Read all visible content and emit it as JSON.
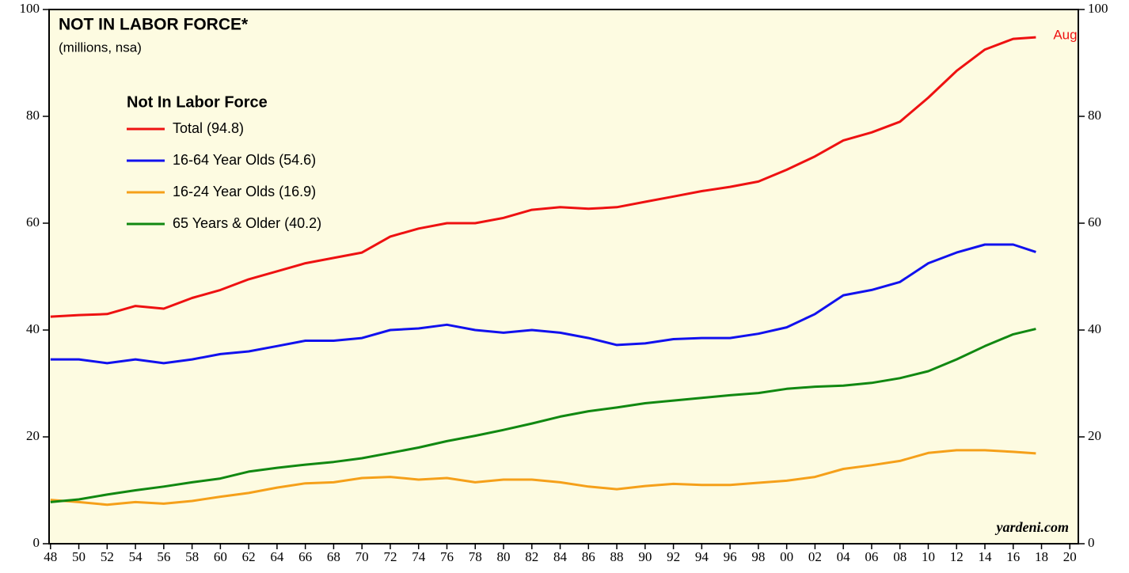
{
  "chart_data": {
    "type": "line",
    "title": "NOT IN LABOR FORCE*",
    "subtitle": "(millions, nsa)",
    "legend_title": "Not In Labor Force",
    "annotation": "Aug",
    "source": "yardeni.com",
    "x": [
      1948,
      1950,
      1952,
      1954,
      1956,
      1958,
      1960,
      1962,
      1964,
      1966,
      1968,
      1970,
      1972,
      1974,
      1976,
      1978,
      1980,
      1982,
      1984,
      1986,
      1988,
      1990,
      1992,
      1994,
      1996,
      1998,
      2000,
      2002,
      2004,
      2006,
      2008,
      2010,
      2012,
      2014,
      2016,
      2017.6
    ],
    "series": [
      {
        "name": "Total (94.8)",
        "color": "#ee1111",
        "values": [
          42.5,
          42.8,
          43,
          44.5,
          44,
          46,
          47.5,
          49.5,
          51,
          52.5,
          53.5,
          54.5,
          57.5,
          59,
          60,
          60,
          61,
          62.5,
          63,
          62.7,
          63,
          64,
          65,
          66,
          66.8,
          67.8,
          70,
          72.5,
          75.5,
          77,
          79,
          83.5,
          88.5,
          92.5,
          94.5,
          94.8
        ]
      },
      {
        "name": "16-64 Year Olds (54.6)",
        "color": "#1111ee",
        "values": [
          34.5,
          34.5,
          33.8,
          34.5,
          33.8,
          34.5,
          35.5,
          36,
          37,
          38,
          38,
          38.5,
          40,
          40.3,
          41,
          40,
          39.5,
          40,
          39.5,
          38.5,
          37.2,
          37.5,
          38.3,
          38.5,
          38.5,
          39.3,
          40.5,
          43,
          46.5,
          47.5,
          49,
          52.5,
          54.5,
          56,
          56,
          54.6
        ]
      },
      {
        "name": "16-24 Year Olds (16.9)",
        "color": "#f5a01a",
        "values": [
          8.2,
          7.8,
          7.3,
          7.8,
          7.5,
          8,
          8.8,
          9.5,
          10.5,
          11.3,
          11.5,
          12.3,
          12.5,
          12,
          12.3,
          11.5,
          12,
          12,
          11.5,
          10.7,
          10.2,
          10.8,
          11.2,
          11,
          11,
          11.4,
          11.8,
          12.5,
          14,
          14.7,
          15.5,
          17,
          17.5,
          17.5,
          17.2,
          16.9
        ]
      },
      {
        "name": "65 Years & Older (40.2)",
        "color": "#118811",
        "values": [
          7.8,
          8.3,
          9.2,
          10,
          10.7,
          11.5,
          12.2,
          13.5,
          14.2,
          14.8,
          15.3,
          16,
          17,
          18,
          19.2,
          20.2,
          21.3,
          22.5,
          23.8,
          24.8,
          25.5,
          26.3,
          26.8,
          27.3,
          27.8,
          28.2,
          29,
          29.4,
          29.6,
          30.1,
          31,
          32.3,
          34.5,
          37,
          39.2,
          40.2
        ]
      }
    ],
    "xlim": [
      1947.9,
      2020.6
    ],
    "xticks": [
      {
        "value": 1948,
        "label": "48"
      },
      {
        "value": 1950,
        "label": "50"
      },
      {
        "value": 1952,
        "label": "52"
      },
      {
        "value": 1954,
        "label": "54"
      },
      {
        "value": 1956,
        "label": "56"
      },
      {
        "value": 1958,
        "label": "58"
      },
      {
        "value": 1960,
        "label": "60"
      },
      {
        "value": 1962,
        "label": "62"
      },
      {
        "value": 1964,
        "label": "64"
      },
      {
        "value": 1966,
        "label": "66"
      },
      {
        "value": 1968,
        "label": "68"
      },
      {
        "value": 1970,
        "label": "70"
      },
      {
        "value": 1972,
        "label": "72"
      },
      {
        "value": 1974,
        "label": "74"
      },
      {
        "value": 1976,
        "label": "76"
      },
      {
        "value": 1978,
        "label": "78"
      },
      {
        "value": 1980,
        "label": "80"
      },
      {
        "value": 1982,
        "label": "82"
      },
      {
        "value": 1984,
        "label": "84"
      },
      {
        "value": 1986,
        "label": "86"
      },
      {
        "value": 1988,
        "label": "88"
      },
      {
        "value": 1990,
        "label": "90"
      },
      {
        "value": 1992,
        "label": "92"
      },
      {
        "value": 1994,
        "label": "94"
      },
      {
        "value": 1996,
        "label": "96"
      },
      {
        "value": 1998,
        "label": "98"
      },
      {
        "value": 2000,
        "label": "00"
      },
      {
        "value": 2002,
        "label": "02"
      },
      {
        "value": 2004,
        "label": "04"
      },
      {
        "value": 2006,
        "label": "06"
      },
      {
        "value": 2008,
        "label": "08"
      },
      {
        "value": 2010,
        "label": "10"
      },
      {
        "value": 2012,
        "label": "12"
      },
      {
        "value": 2014,
        "label": "14"
      },
      {
        "value": 2016,
        "label": "16"
      },
      {
        "value": 2018,
        "label": "18"
      },
      {
        "value": 2020,
        "label": "20"
      }
    ],
    "ylim": [
      0,
      100
    ],
    "yticks": [
      0,
      20,
      40,
      60,
      80,
      100
    ],
    "background": "#fdfbe1"
  }
}
